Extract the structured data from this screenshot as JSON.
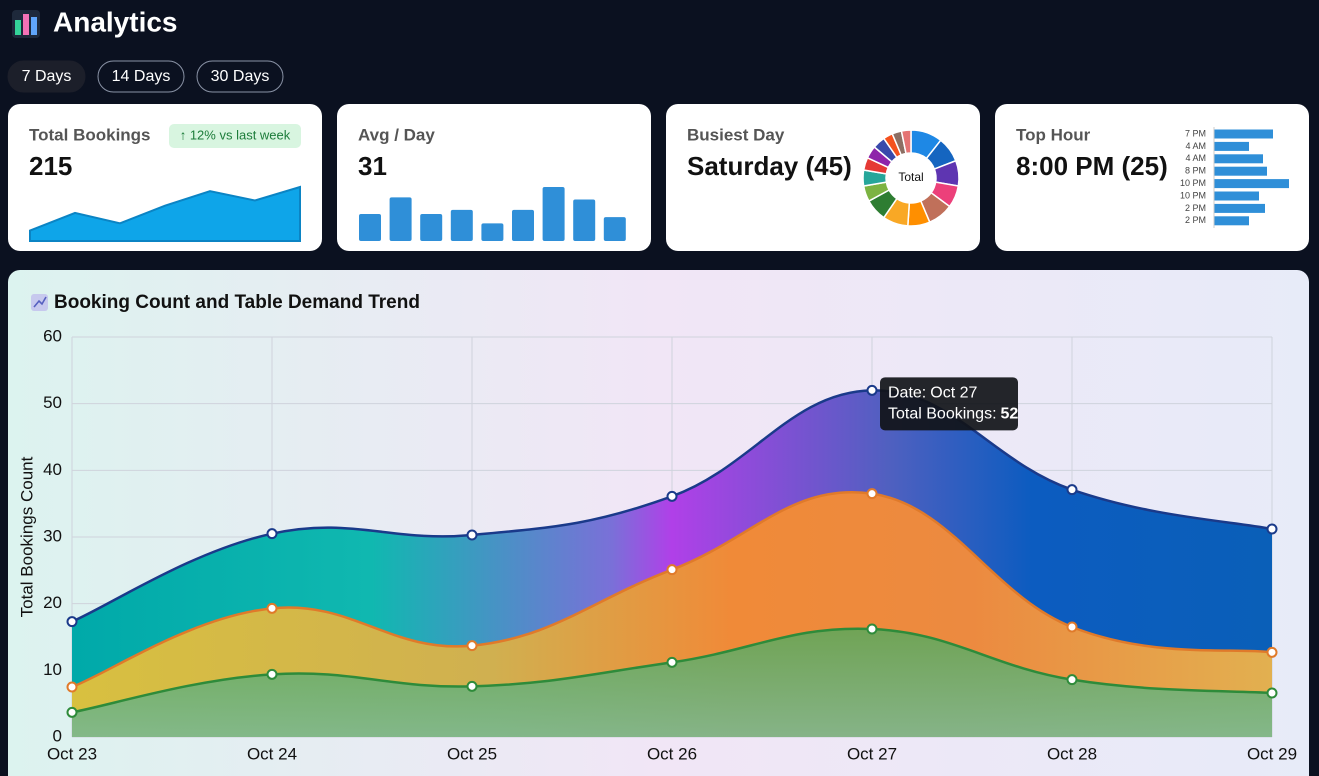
{
  "header": {
    "title": "Analytics"
  },
  "filters": [
    "7 Days",
    "14 Days",
    "30 Days"
  ],
  "active_filter": 0,
  "cards": [
    {
      "title": "Total Bookings",
      "value": 215,
      "badge": "↑ 12% vs last week"
    },
    {
      "title": "Avg / Day",
      "value": 31
    },
    {
      "title": "Busiest Day",
      "value": "Saturday (45)"
    },
    {
      "title": "Top Hour",
      "value": "8:00 PM (25)"
    }
  ],
  "chart_data": [
    {
      "type": "area",
      "color": "#0ea5e9",
      "values": [
        10,
        27,
        17,
        34,
        48,
        39,
        52
      ]
    },
    {
      "type": "bar",
      "color": "#2f8fd8",
      "values": [
        26,
        42,
        26,
        30,
        17,
        30,
        52,
        40,
        23
      ]
    },
    {
      "type": "pie",
      "donut": true,
      "center_label": "Total",
      "values": [
        10,
        8,
        8,
        7,
        8,
        7,
        8,
        7,
        5,
        5,
        4,
        4,
        4,
        3,
        3,
        3
      ],
      "colors": [
        "#1e88e5",
        "#1565c0",
        "#5e35b1",
        "#ec407a",
        "#c0705a",
        "#ff8f00",
        "#f9a825",
        "#2e7d32",
        "#7cb342",
        "#26a69a",
        "#e53935",
        "#8e24aa",
        "#3949ab",
        "#f4511e",
        "#8d6e63",
        "#e57373"
      ]
    },
    {
      "type": "barh",
      "color": "#2f8fd8",
      "categories": [
        "7 PM",
        "4 AM",
        "4 AM",
        "8 PM",
        "10 PM",
        "10 PM",
        "2 PM",
        "2 PM"
      ],
      "values": [
        59,
        35,
        49,
        53,
        75,
        45,
        51,
        35
      ]
    },
    {
      "type": "line",
      "title": "Booking Count and Table Demand Trend",
      "ylabel": "Total Bookings Count",
      "categories": [
        "Oct 23",
        "Oct 24",
        "Oct 25",
        "Oct 26",
        "Oct 27",
        "Oct 28",
        "Oct 29"
      ],
      "series": [
        {
          "name": "Total Bookings",
          "color": "#1a3a8a",
          "values": [
            17.3,
            30.5,
            30.3,
            36.1,
            52,
            37.1,
            31.2
          ]
        },
        {
          "color": "#e07a2a",
          "values": [
            7.5,
            19.3,
            13.7,
            25.1,
            36.5,
            16.5,
            12.7
          ]
        },
        {
          "color": "#2e8b3a",
          "values": [
            3.7,
            9.4,
            7.6,
            11.2,
            16.2,
            8.6,
            6.6
          ]
        }
      ],
      "ylim": [
        0,
        60
      ],
      "yticks": [
        0,
        10,
        20,
        30,
        40,
        50,
        60
      ],
      "grid": true,
      "fill": true,
      "tooltip": {
        "date_label": "Date:",
        "date": "Oct 27",
        "value_label": "Total Bookings:",
        "value": 52
      }
    }
  ]
}
